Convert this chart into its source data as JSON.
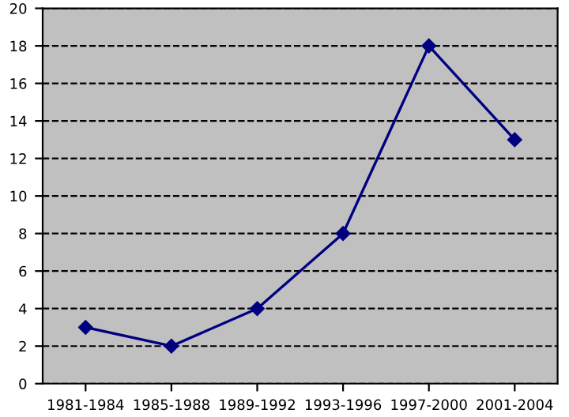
{
  "chart_data": {
    "type": "line",
    "categories": [
      "1981-1984",
      "1985-1988",
      "1989-1992",
      "1993-1996",
      "1997-2000",
      "2001-2004"
    ],
    "series": [
      {
        "color": "#000080",
        "values": [
          3,
          2,
          4,
          8,
          18,
          13
        ]
      }
    ],
    "ylim": [
      0,
      20
    ],
    "yticks": [
      0,
      2,
      4,
      6,
      8,
      10,
      12,
      14,
      16,
      18,
      20
    ],
    "grid": "y",
    "marker": "diamond",
    "line_style": "solid"
  }
}
